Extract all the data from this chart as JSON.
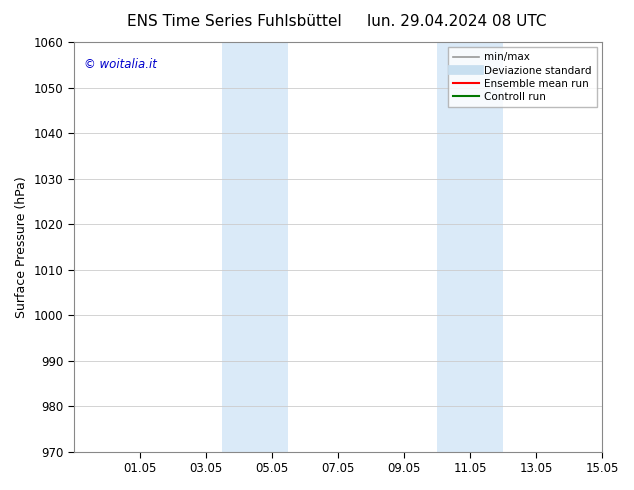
{
  "title_left": "ENS Time Series Fuhlsbüttel",
  "title_right": "lun. 29.04.2024 08 UTC",
  "ylabel": "Surface Pressure (hPa)",
  "ylim": [
    970,
    1060
  ],
  "yticks": [
    970,
    980,
    990,
    1000,
    1010,
    1020,
    1030,
    1040,
    1050,
    1060
  ],
  "xlim": [
    0,
    16
  ],
  "xtick_labels": [
    "01.05",
    "03.05",
    "05.05",
    "07.05",
    "09.05",
    "11.05",
    "13.05",
    "15.05"
  ],
  "xtick_positions": [
    2,
    4,
    6,
    8,
    10,
    12,
    14,
    16
  ],
  "shaded_bands": [
    {
      "x_start": 4.5,
      "x_end": 6.5,
      "color": "#daeaf8"
    },
    {
      "x_start": 11.0,
      "x_end": 13.0,
      "color": "#daeaf8"
    }
  ],
  "watermark_text": "© woitalia.it",
  "watermark_color": "#0000cc",
  "bg_color": "#ffffff",
  "plot_bg_color": "#ffffff",
  "grid_color": "#cccccc",
  "legend_entries": [
    {
      "label": "min/max",
      "color": "#999999",
      "lw": 1.2,
      "style": "solid"
    },
    {
      "label": "Deviazione standard",
      "color": "#c8dff0",
      "lw": 7,
      "style": "solid"
    },
    {
      "label": "Ensemble mean run",
      "color": "#ff0000",
      "lw": 1.5,
      "style": "solid"
    },
    {
      "label": "Controll run",
      "color": "#007700",
      "lw": 1.5,
      "style": "solid"
    }
  ],
  "title_fontsize": 11,
  "ylabel_fontsize": 9,
  "tick_fontsize": 8.5,
  "watermark_fontsize": 8.5,
  "legend_fontsize": 7.5
}
